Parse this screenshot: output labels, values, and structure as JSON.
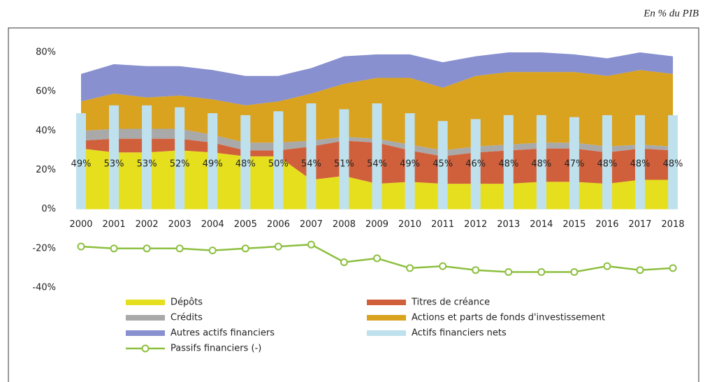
{
  "chart_data": {
    "type": "combo",
    "unit_note": "En % du PIB",
    "categories": [
      "2000",
      "2001",
      "2002",
      "2003",
      "2004",
      "2005",
      "2006",
      "2007",
      "2008",
      "2009",
      "2010",
      "2011",
      "2012",
      "2013",
      "2014",
      "2015",
      "2016",
      "2017",
      "2018"
    ],
    "ylim": [
      -45,
      85
    ],
    "yticks": [
      {
        "value": 80,
        "label": "80%"
      },
      {
        "value": 60,
        "label": "60%"
      },
      {
        "value": 40,
        "label": "40%"
      },
      {
        "value": 20,
        "label": "20%"
      },
      {
        "value": 0,
        "label": "0%"
      },
      {
        "value": -20,
        "label": "-20%"
      },
      {
        "value": -40,
        "label": "-40%"
      }
    ],
    "series": [
      {
        "name": "Dépôts",
        "type": "area",
        "color": "#e6df1e",
        "values": [
          31,
          29,
          29,
          30,
          29,
          27,
          27,
          15,
          17,
          13,
          14,
          13,
          13,
          13,
          14,
          14,
          13,
          15,
          15
        ]
      },
      {
        "name": "Titres de créance",
        "type": "area",
        "color": "#d0603c",
        "values": [
          4,
          7,
          7,
          6,
          5,
          3,
          3,
          17,
          18,
          21,
          16,
          14,
          16,
          17,
          17,
          17,
          16,
          16,
          15
        ]
      },
      {
        "name": "Crédits",
        "type": "area",
        "color": "#a9a9a9",
        "values": [
          5,
          5,
          5,
          5,
          4,
          4,
          4,
          3,
          2,
          2,
          3,
          3,
          3,
          3,
          3,
          3,
          3,
          2,
          2
        ]
      },
      {
        "name": "Actions et parts de fonds d'investissement",
        "type": "area",
        "color": "#d9a21f",
        "values": [
          15,
          18,
          16,
          17,
          18,
          19,
          21,
          24,
          27,
          31,
          34,
          32,
          36,
          37,
          36,
          36,
          36,
          38,
          37
        ]
      },
      {
        "name": "Autres actifs financiers",
        "type": "area",
        "color": "#8890cf",
        "values": [
          14,
          15,
          16,
          15,
          15,
          15,
          13,
          13,
          14,
          12,
          12,
          13,
          10,
          10,
          10,
          9,
          9,
          9,
          9
        ]
      },
      {
        "name": "Actifs financiers nets",
        "type": "bar",
        "color": "#bfe1ed",
        "values": [
          49,
          53,
          53,
          52,
          49,
          48,
          50,
          54,
          51,
          54,
          49,
          45,
          46,
          48,
          48,
          47,
          48,
          48,
          48
        ],
        "value_labels": [
          "49%",
          "53%",
          "53%",
          "52%",
          "49%",
          "48%",
          "50%",
          "54%",
          "51%",
          "54%",
          "49%",
          "45%",
          "46%",
          "48%",
          "48%",
          "47%",
          "48%",
          "48%",
          "48%"
        ]
      },
      {
        "name": "Passifs financiers (-)",
        "type": "line",
        "color": "#8dbf3f",
        "values": [
          -19,
          -20,
          -20,
          -20,
          -21,
          -20,
          -19,
          -18,
          -27,
          -25,
          -30,
          -29,
          -31,
          -32,
          -32,
          -32,
          -29,
          -31,
          -30
        ]
      }
    ]
  }
}
